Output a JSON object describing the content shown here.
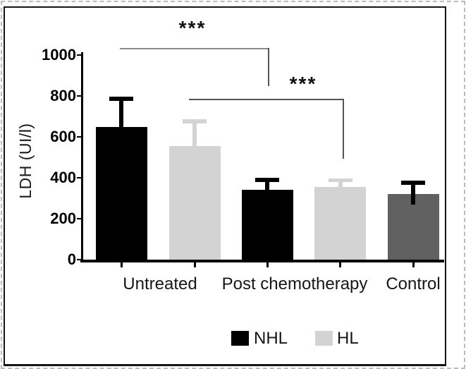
{
  "chart_data": {
    "type": "bar",
    "title": "",
    "ylabel": "LDH (UI/l)",
    "xlabel": "",
    "y_axis": {
      "min": 0,
      "max": 1000,
      "ticks": [
        0,
        200,
        400,
        600,
        800,
        1000
      ]
    },
    "categories": [
      "Untreated",
      "Post chemotherapy",
      "Control"
    ],
    "series": [
      {
        "name": "NHL",
        "color": "#000000"
      },
      {
        "name": "HL",
        "color": "#d3d3d3"
      }
    ],
    "bars": [
      {
        "category": "Untreated",
        "series": "NHL",
        "value": 650,
        "error_top": 795,
        "color": "#000000",
        "error_color": "#000000"
      },
      {
        "category": "Untreated",
        "series": "HL",
        "value": 555,
        "error_top": 685,
        "color": "#d3d3d3",
        "error_color": "#d3d3d3"
      },
      {
        "category": "Post chemotherapy",
        "series": "NHL",
        "value": 340,
        "error_top": 400,
        "color": "#000000",
        "error_color": "#000000"
      },
      {
        "category": "Post chemotherapy",
        "series": "HL",
        "value": 355,
        "error_top": 397,
        "color": "#d3d3d3",
        "error_color": "#d3d3d3"
      },
      {
        "category": "Control",
        "series": "Control",
        "value": 320,
        "error_top": 385,
        "color": "#606060",
        "error_color": "#000000"
      }
    ],
    "legend": [
      {
        "label": "NHL",
        "color": "#000000"
      },
      {
        "label": "HL",
        "color": "#d3d3d3"
      }
    ],
    "legend_position": "bottom",
    "significance": [
      {
        "label": "***",
        "compares": [
          "Untreated NHL",
          "Post chemotherapy NHL"
        ]
      },
      {
        "label": "***",
        "compares": [
          "Untreated HL",
          "Post chemotherapy HL"
        ]
      }
    ],
    "grid": "off",
    "axis_color": "#000000",
    "bracket_color": "#6f6f6f"
  }
}
